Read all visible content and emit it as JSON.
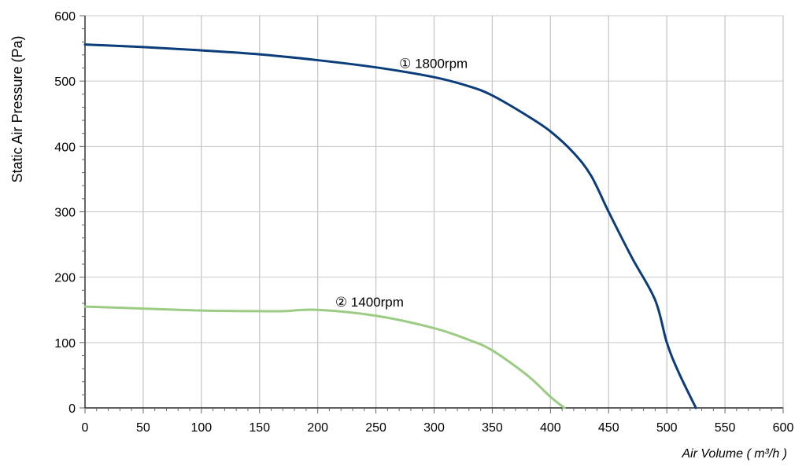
{
  "chart_data": {
    "type": "line",
    "title": "",
    "xlabel": "Air Volume ( m³/h )",
    "ylabel": "Static Air Pressure  (Pa)",
    "xlim": [
      0,
      600
    ],
    "ylim": [
      0,
      600
    ],
    "x_ticks": [
      0,
      50,
      100,
      150,
      200,
      250,
      300,
      350,
      400,
      450,
      500,
      550,
      600
    ],
    "y_ticks": [
      0,
      100,
      200,
      300,
      400,
      500,
      600
    ],
    "x_minor_step": 10,
    "y_minor_step": 20,
    "grid": true,
    "colors": {
      "series1": "#0b3d7a",
      "series2": "#9ccc84",
      "grid": "#c8c8c8",
      "axis": "#000000"
    },
    "series": [
      {
        "name": "① 1800rpm",
        "color": "#0b3d7a",
        "x": [
          0,
          50,
          100,
          150,
          200,
          250,
          300,
          330,
          350,
          380,
          400,
          420,
          435,
          450,
          470,
          490,
          500,
          510,
          525
        ],
        "y": [
          556,
          552,
          547,
          541,
          532,
          521,
          506,
          492,
          478,
          447,
          423,
          390,
          355,
          300,
          230,
          165,
          100,
          55,
          0
        ],
        "label_at": [
          270,
          520
        ]
      },
      {
        "name": "② 1400rpm",
        "color": "#9ccc84",
        "x": [
          0,
          50,
          100,
          150,
          170,
          200,
          250,
          300,
          330,
          350,
          380,
          400,
          412
        ],
        "y": [
          155,
          152,
          149,
          148,
          148,
          150,
          141,
          122,
          104,
          88,
          50,
          17,
          0
        ],
        "label_at": [
          215,
          155
        ]
      }
    ]
  }
}
